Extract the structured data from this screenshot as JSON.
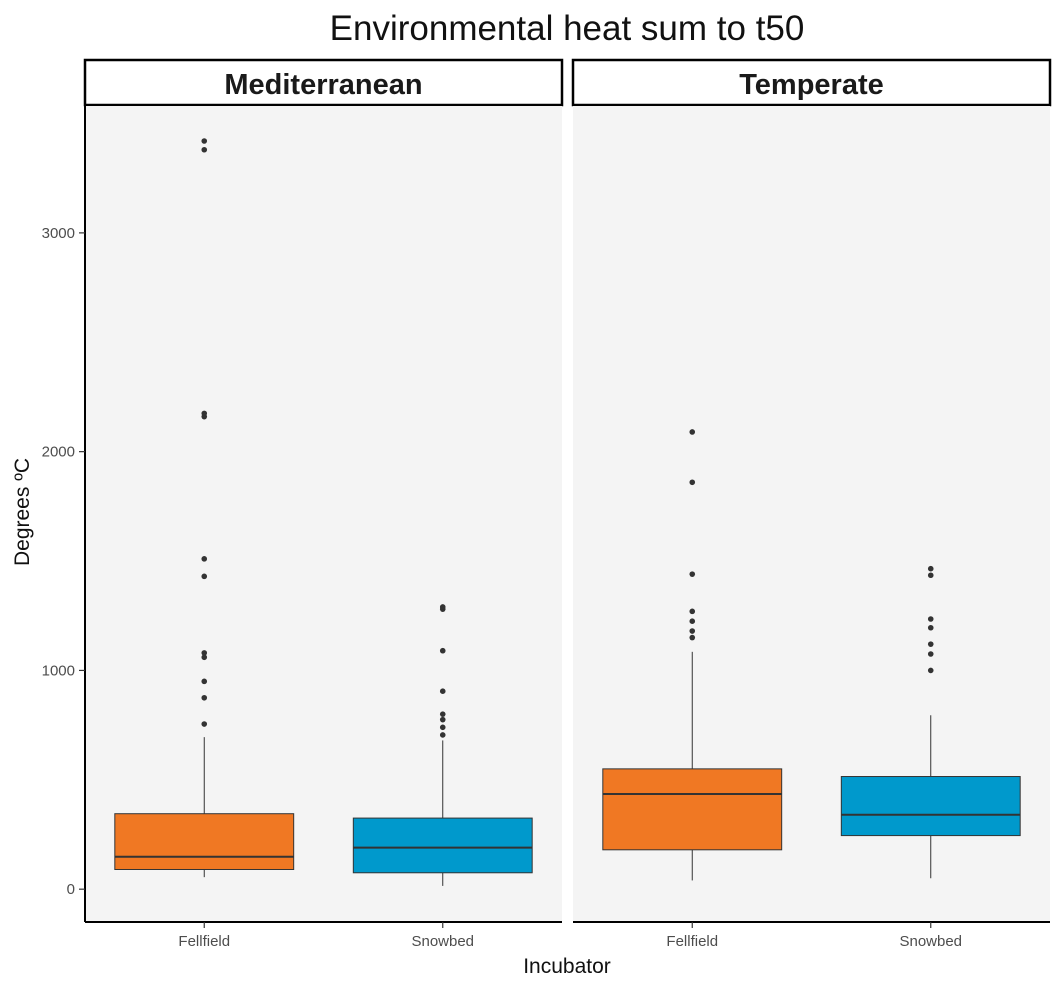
{
  "chart_data": {
    "type": "boxplot",
    "title": "Environmental heat sum to t50",
    "xlabel": "Incubator",
    "ylabel": "Degrees ºC",
    "ylim": [
      -150,
      3580
    ],
    "yticks": [
      0,
      1000,
      2000,
      3000
    ],
    "categories": [
      "Fellfield",
      "Snowbed"
    ],
    "colors": {
      "Fellfield": "#f07823",
      "Snowbed": "#0099cc"
    },
    "facets": [
      {
        "label": "Mediterranean",
        "boxes": [
          {
            "category": "Fellfield",
            "whisker_low": 55,
            "q1": 90,
            "median": 148,
            "q3": 345,
            "whisker_high": 695,
            "outliers": [
              755,
              875,
              950,
              1060,
              1080,
              1430,
              1510,
              2160,
              2175,
              3380,
              3420
            ]
          },
          {
            "category": "Snowbed",
            "whisker_low": 15,
            "q1": 75,
            "median": 190,
            "q3": 325,
            "whisker_high": 680,
            "outliers": [
              705,
              740,
              775,
              800,
              905,
              1090,
              1280,
              1290
            ]
          }
        ]
      },
      {
        "label": "Temperate",
        "boxes": [
          {
            "category": "Fellfield",
            "whisker_low": 40,
            "q1": 180,
            "median": 435,
            "q3": 550,
            "whisker_high": 1085,
            "outliers": [
              1150,
              1180,
              1225,
              1270,
              1440,
              1860,
              2090
            ]
          },
          {
            "category": "Snowbed",
            "whisker_low": 50,
            "q1": 245,
            "median": 340,
            "q3": 515,
            "whisker_high": 795,
            "outliers": [
              1000,
              1075,
              1120,
              1195,
              1235,
              1435,
              1465
            ]
          }
        ]
      }
    ]
  }
}
